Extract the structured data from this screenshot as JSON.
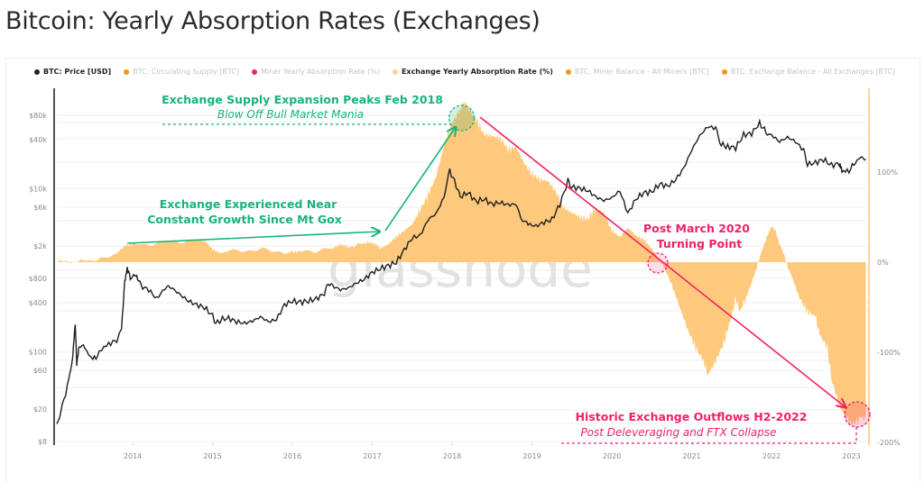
{
  "page": {
    "title": "Bitcoin: Yearly Absorption Rates (Exchanges)"
  },
  "legend": [
    {
      "label": "BTC: Price [USD]",
      "color": "#222222",
      "active": true
    },
    {
      "label": "BTC: Circulating Supply [BTC]",
      "color": "#f7931a",
      "active": false
    },
    {
      "label": "Miner Yearly Absorption Rate (%)",
      "color": "#f0216a",
      "active": false
    },
    {
      "label": "Exchange Yearly Absorption Rate (%)",
      "color": "#fcd49a",
      "active": true
    },
    {
      "label": "BTC: Miner Balance - All Miners [BTC]",
      "color": "#f7931a",
      "active": false
    },
    {
      "label": "BTC: Exchange Balance - All Exchanges [BTC]",
      "color": "#f7931a",
      "active": false
    }
  ],
  "watermark": "glassnode",
  "colors": {
    "price": "#1e1e1e",
    "area": "#fec97c",
    "green": "#17b47a",
    "pink": "#f0216a",
    "right_axis": "#fcd49a",
    "grid": "#efefef"
  },
  "chart_data": {
    "type": "line+area",
    "title": "Bitcoin: Yearly Absorption Rates (Exchanges)",
    "x_axis": {
      "type": "time",
      "range": [
        2013.05,
        2023.2
      ],
      "tick_labels": [
        "2014",
        "2015",
        "2016",
        "2017",
        "2018",
        "2019",
        "2020",
        "2021",
        "2022",
        "2023"
      ],
      "tick_values": [
        2014,
        2015,
        2016,
        2017,
        2018,
        2019,
        2020,
        2021,
        2022,
        2023
      ]
    },
    "y_left": {
      "scale": "log",
      "label": "BTC: Price [USD]",
      "range": [
        7,
        100000
      ],
      "tick_labels": [
        "$8",
        "$20",
        "$60",
        "$100",
        "$400",
        "$800",
        "$2k",
        "$6k",
        "$10k",
        "$40k",
        "$80k"
      ],
      "tick_values": [
        8,
        20,
        60,
        100,
        400,
        800,
        2000,
        6000,
        10000,
        40000,
        80000
      ]
    },
    "y_right": {
      "scale": "linear",
      "label": "Exchange Yearly Absorption Rate (%)",
      "range": [
        -200,
        200
      ],
      "tick_labels": [
        "100%",
        "0%",
        "-100%",
        "-200%"
      ],
      "tick_values": [
        100,
        0,
        -100,
        -200
      ]
    },
    "grid": true,
    "legend_position": "top",
    "series": [
      {
        "name": "BTC: Price [USD]",
        "axis": "left",
        "kind": "line",
        "points": [
          [
            2013.05,
            13
          ],
          [
            2013.12,
            22
          ],
          [
            2013.2,
            45
          ],
          [
            2013.25,
            90
          ],
          [
            2013.28,
            230
          ],
          [
            2013.3,
            70
          ],
          [
            2013.33,
            120
          ],
          [
            2013.4,
            110
          ],
          [
            2013.5,
            80
          ],
          [
            2013.58,
            95
          ],
          [
            2013.7,
            125
          ],
          [
            2013.8,
            140
          ],
          [
            2013.86,
            200
          ],
          [
            2013.9,
            700
          ],
          [
            2013.93,
            1100
          ],
          [
            2013.97,
            800
          ],
          [
            2014.05,
            900
          ],
          [
            2014.1,
            650
          ],
          [
            2014.2,
            580
          ],
          [
            2014.3,
            450
          ],
          [
            2014.4,
            600
          ],
          [
            2014.45,
            640
          ],
          [
            2014.5,
            600
          ],
          [
            2014.6,
            500
          ],
          [
            2014.7,
            420
          ],
          [
            2014.8,
            380
          ],
          [
            2014.9,
            350
          ],
          [
            2015.0,
            280
          ],
          [
            2015.05,
            220
          ],
          [
            2015.1,
            250
          ],
          [
            2015.2,
            260
          ],
          [
            2015.3,
            235
          ],
          [
            2015.4,
            225
          ],
          [
            2015.5,
            240
          ],
          [
            2015.6,
            270
          ],
          [
            2015.7,
            235
          ],
          [
            2015.8,
            250
          ],
          [
            2015.9,
            380
          ],
          [
            2016.0,
            420
          ],
          [
            2016.1,
            410
          ],
          [
            2016.2,
            420
          ],
          [
            2016.3,
            450
          ],
          [
            2016.4,
            520
          ],
          [
            2016.45,
            700
          ],
          [
            2016.5,
            650
          ],
          [
            2016.6,
            580
          ],
          [
            2016.7,
            610
          ],
          [
            2016.8,
            700
          ],
          [
            2016.9,
            780
          ],
          [
            2017.0,
            950
          ],
          [
            2017.1,
            1050
          ],
          [
            2017.2,
            1150
          ],
          [
            2017.3,
            1250
          ],
          [
            2017.4,
            1800
          ],
          [
            2017.5,
            2500
          ],
          [
            2017.6,
            2700
          ],
          [
            2017.7,
            4200
          ],
          [
            2017.8,
            5000
          ],
          [
            2017.9,
            8000
          ],
          [
            2017.97,
            17000
          ],
          [
            2018.05,
            11000
          ],
          [
            2018.1,
            8000
          ],
          [
            2018.2,
            9000
          ],
          [
            2018.3,
            7000
          ],
          [
            2018.4,
            7500
          ],
          [
            2018.5,
            6500
          ],
          [
            2018.6,
            6800
          ],
          [
            2018.7,
            6400
          ],
          [
            2018.8,
            6500
          ],
          [
            2018.88,
            4000
          ],
          [
            2018.95,
            3700
          ],
          [
            2019.05,
            3500
          ],
          [
            2019.15,
            3900
          ],
          [
            2019.25,
            4200
          ],
          [
            2019.35,
            6500
          ],
          [
            2019.45,
            12500
          ],
          [
            2019.5,
            10500
          ],
          [
            2019.6,
            10200
          ],
          [
            2019.7,
            9500
          ],
          [
            2019.8,
            8000
          ],
          [
            2019.9,
            7200
          ],
          [
            2020.0,
            7800
          ],
          [
            2020.1,
            9500
          ],
          [
            2020.2,
            5000
          ],
          [
            2020.3,
            7500
          ],
          [
            2020.4,
            9000
          ],
          [
            2020.5,
            9200
          ],
          [
            2020.6,
            11500
          ],
          [
            2020.7,
            10800
          ],
          [
            2020.8,
            13000
          ],
          [
            2020.9,
            18000
          ],
          [
            2021.0,
            30000
          ],
          [
            2021.1,
            45000
          ],
          [
            2021.2,
            58000
          ],
          [
            2021.3,
            56000
          ],
          [
            2021.37,
            35000
          ],
          [
            2021.45,
            33000
          ],
          [
            2021.55,
            32000
          ],
          [
            2021.65,
            46000
          ],
          [
            2021.75,
            48000
          ],
          [
            2021.85,
            64000
          ],
          [
            2021.93,
            50000
          ],
          [
            2022.0,
            46000
          ],
          [
            2022.1,
            38000
          ],
          [
            2022.2,
            43000
          ],
          [
            2022.3,
            38000
          ],
          [
            2022.4,
            30000
          ],
          [
            2022.45,
            20000
          ],
          [
            2022.55,
            21000
          ],
          [
            2022.65,
            23000
          ],
          [
            2022.75,
            19500
          ],
          [
            2022.85,
            20500
          ],
          [
            2022.88,
            16500
          ],
          [
            2022.97,
            16700
          ],
          [
            2023.05,
            21500
          ],
          [
            2023.12,
            23500
          ],
          [
            2023.18,
            22000
          ]
        ]
      },
      {
        "name": "Exchange Yearly Absorption Rate (%)",
        "axis": "right",
        "kind": "area",
        "points": [
          [
            2013.05,
            0
          ],
          [
            2013.3,
            1
          ],
          [
            2013.6,
            3
          ],
          [
            2013.8,
            10
          ],
          [
            2013.9,
            18
          ],
          [
            2014.0,
            20
          ],
          [
            2014.2,
            20
          ],
          [
            2014.4,
            22
          ],
          [
            2014.6,
            23
          ],
          [
            2014.8,
            25
          ],
          [
            2014.9,
            24
          ],
          [
            2015.0,
            14
          ],
          [
            2015.1,
            10
          ],
          [
            2015.2,
            12
          ],
          [
            2015.4,
            13
          ],
          [
            2015.6,
            14
          ],
          [
            2015.8,
            12
          ],
          [
            2016.0,
            11
          ],
          [
            2016.1,
            12
          ],
          [
            2016.3,
            13
          ],
          [
            2016.5,
            15
          ],
          [
            2016.6,
            20
          ],
          [
            2016.7,
            17
          ],
          [
            2016.85,
            20
          ],
          [
            2016.95,
            22
          ],
          [
            2017.05,
            20
          ],
          [
            2017.1,
            15
          ],
          [
            2017.2,
            20
          ],
          [
            2017.3,
            28
          ],
          [
            2017.4,
            35
          ],
          [
            2017.5,
            42
          ],
          [
            2017.6,
            58
          ],
          [
            2017.7,
            75
          ],
          [
            2017.8,
            95
          ],
          [
            2017.9,
            130
          ],
          [
            2018.0,
            155
          ],
          [
            2018.1,
            170
          ],
          [
            2018.15,
            178
          ],
          [
            2018.2,
            172
          ],
          [
            2018.3,
            158
          ],
          [
            2018.4,
            142
          ],
          [
            2018.5,
            140
          ],
          [
            2018.6,
            138
          ],
          [
            2018.7,
            125
          ],
          [
            2018.8,
            128
          ],
          [
            2018.9,
            110
          ],
          [
            2019.0,
            98
          ],
          [
            2019.1,
            92
          ],
          [
            2019.2,
            90
          ],
          [
            2019.3,
            78
          ],
          [
            2019.4,
            60
          ],
          [
            2019.5,
            55
          ],
          [
            2019.6,
            50
          ],
          [
            2019.7,
            48
          ],
          [
            2019.8,
            60
          ],
          [
            2019.9,
            55
          ],
          [
            2020.0,
            35
          ],
          [
            2020.1,
            28
          ],
          [
            2020.2,
            38
          ],
          [
            2020.3,
            30
          ],
          [
            2020.4,
            25
          ],
          [
            2020.5,
            15
          ],
          [
            2020.6,
            2
          ],
          [
            2020.65,
            -5
          ],
          [
            2020.75,
            -25
          ],
          [
            2020.85,
            -50
          ],
          [
            2020.95,
            -75
          ],
          [
            2021.05,
            -95
          ],
          [
            2021.15,
            -110
          ],
          [
            2021.2,
            -125
          ],
          [
            2021.3,
            -110
          ],
          [
            2021.4,
            -90
          ],
          [
            2021.5,
            -60
          ],
          [
            2021.55,
            -40
          ],
          [
            2021.6,
            -55
          ],
          [
            2021.7,
            -35
          ],
          [
            2021.8,
            -10
          ],
          [
            2021.85,
            5
          ],
          [
            2021.9,
            18
          ],
          [
            2021.95,
            30
          ],
          [
            2022.0,
            40
          ],
          [
            2022.05,
            35
          ],
          [
            2022.1,
            20
          ],
          [
            2022.15,
            10
          ],
          [
            2022.2,
            -5
          ],
          [
            2022.25,
            -15
          ],
          [
            2022.35,
            -40
          ],
          [
            2022.45,
            -55
          ],
          [
            2022.55,
            -60
          ],
          [
            2022.6,
            -80
          ],
          [
            2022.7,
            -95
          ],
          [
            2022.75,
            -130
          ],
          [
            2022.85,
            -160
          ],
          [
            2022.95,
            -175
          ],
          [
            2023.0,
            -180
          ],
          [
            2023.1,
            -175
          ],
          [
            2023.18,
            -170
          ]
        ]
      }
    ],
    "annotations": [
      {
        "id": "peak",
        "title": "Exchange Supply Expansion Peaks Feb 2018",
        "subtitle": "Blow Off Bull Market Mania",
        "color": "green",
        "x": 2018.12,
        "y_pct": 160
      },
      {
        "id": "growth",
        "title_lines": [
          "Exchange Experienced Near",
          "Constant Growth Since Mt Gox"
        ],
        "color": "green"
      },
      {
        "id": "turning",
        "title_lines": [
          "Post March 2020",
          "Turning Point"
        ],
        "color": "pink",
        "x": 2020.55,
        "y_pct": 0
      },
      {
        "id": "outflows",
        "title": "Historic Exchange Outflows H2-2022",
        "subtitle": "Post Deleveraging and FTX Collapse",
        "color": "pink",
        "x": 2023.05,
        "y_pct": -168
      }
    ]
  }
}
